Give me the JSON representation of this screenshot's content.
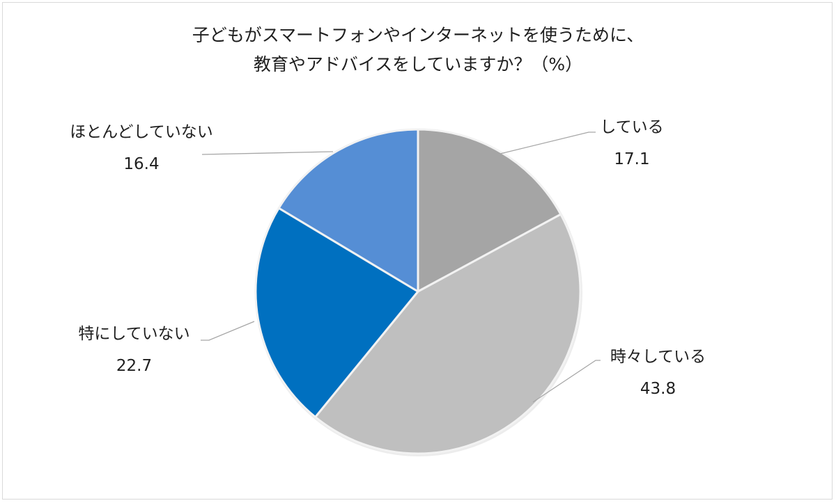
{
  "chart_data": {
    "type": "pie",
    "title": "子どもがスマートフォンやインターネットを使うために、教育やアドバイスをしていますか？（%）",
    "title_lines": [
      "子どもがスマートフォンやインターネットを使うために、",
      "教育やアドバイスをしていますか？（%）"
    ],
    "unit": "%",
    "categories": [
      "している",
      "時々している",
      "特にしていない",
      "ほとんどしていない"
    ],
    "values": [
      17.1,
      43.8,
      22.7,
      16.4
    ],
    "colors": [
      "#a5a5a5",
      "#bfbfbf",
      "#0070c0",
      "#558ed5"
    ],
    "start_angle": "12 o'clock, clockwise",
    "legend": "none (data labels with leader lines)",
    "slices": [
      {
        "label": "している",
        "value": 17.1,
        "value_text": "17.1",
        "color": "#a5a5a5"
      },
      {
        "label": "時々している",
        "value": 43.8,
        "value_text": "43.8",
        "color": "#bfbfbf"
      },
      {
        "label": "特にしていない",
        "value": 22.7,
        "value_text": "22.7",
        "color": "#0070c0"
      },
      {
        "label": "ほとんどしていない",
        "value": 16.4,
        "value_text": "16.4",
        "color": "#558ed5"
      }
    ]
  }
}
